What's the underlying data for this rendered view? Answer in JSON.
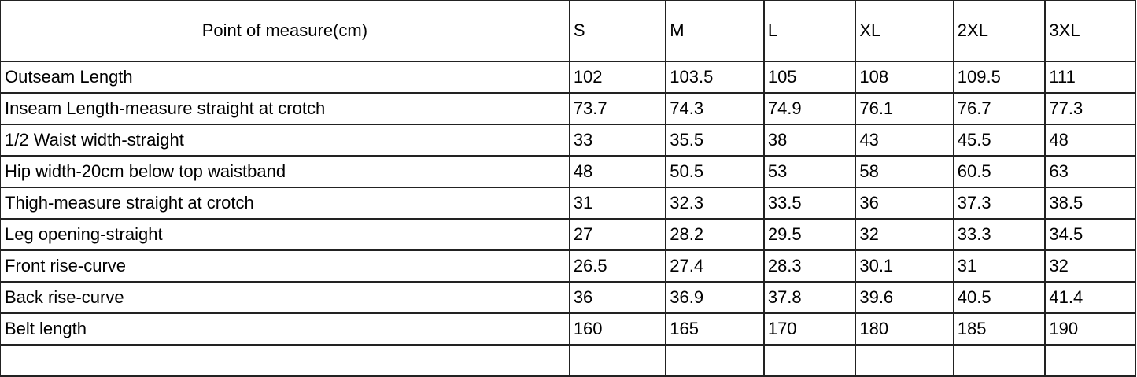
{
  "table": {
    "header": [
      "Point of measure(cm)",
      "S",
      "M",
      "L",
      "XL",
      "2XL",
      "3XL"
    ],
    "rows": [
      [
        "Outseam Length",
        "102",
        "103.5",
        "105",
        "108",
        "109.5",
        "111"
      ],
      [
        "Inseam Length-measure straight at crotch",
        "73.7",
        "74.3",
        "74.9",
        "76.1",
        "76.7",
        "77.3"
      ],
      [
        "1/2 Waist width-straight",
        "33",
        "35.5",
        "38",
        "43",
        "45.5",
        "48"
      ],
      [
        "Hip width-20cm below top waistband",
        "48",
        "50.5",
        "53",
        "58",
        "60.5",
        "63"
      ],
      [
        "Thigh-measure straight at crotch",
        "31",
        "32.3",
        "33.5",
        "36",
        "37.3",
        "38.5"
      ],
      [
        "Leg opening-straight",
        "27",
        "28.2",
        "29.5",
        "32",
        "33.3",
        "34.5"
      ],
      [
        "Front rise-curve",
        "26.5",
        "27.4",
        "28.3",
        "30.1",
        "31",
        "32"
      ],
      [
        "Back rise-curve",
        "36",
        "36.9",
        "37.8",
        "39.6",
        "40.5",
        "41.4"
      ],
      [
        "Belt length",
        "160",
        "165",
        "170",
        "180",
        "185",
        "190"
      ],
      [
        "",
        "",
        "",
        "",
        "",
        "",
        ""
      ]
    ]
  }
}
